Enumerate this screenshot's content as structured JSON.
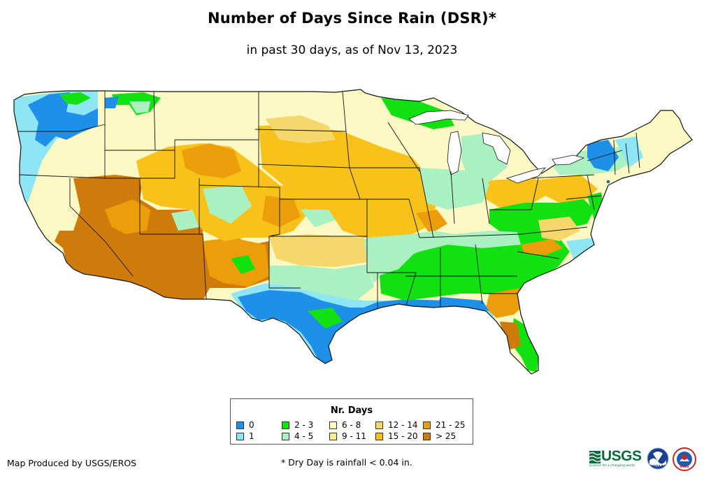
{
  "title": "Number of Days Since Rain (DSR)*",
  "subtitle": "in past 30 days, as of Nov 13, 2023",
  "legend": {
    "title": "Nr. Days",
    "items": [
      {
        "label": "0",
        "color": "#1e90e8"
      },
      {
        "label": "1",
        "color": "#8ee6f5"
      },
      {
        "label": "2 - 3",
        "color": "#11e011"
      },
      {
        "label": "4 - 5",
        "color": "#aaf0c0"
      },
      {
        "label": "6 - 8",
        "color": "#fdf9c4"
      },
      {
        "label": "9 - 11",
        "color": "#fbf190"
      },
      {
        "label": "12 - 14",
        "color": "#f5d76c"
      },
      {
        "label": "15 - 20",
        "color": "#f8c21a"
      },
      {
        "label": "21 - 25",
        "color": "#ec9d0a"
      },
      {
        "label": "> 25",
        "color": "#cd7b0b"
      }
    ]
  },
  "credit": "Map Produced by USGS/EROS",
  "footnote": "* Dry Day is rainfall < 0.04 in.",
  "logos": {
    "usgs_text": "USGS",
    "usgs_tagline": "science for a changing world",
    "noaa_text": "NOAA",
    "nws_text": "NWS"
  },
  "map": {
    "region": "Contiguous United States",
    "base_color": "#fdf9c4",
    "border_color": "#111111"
  }
}
